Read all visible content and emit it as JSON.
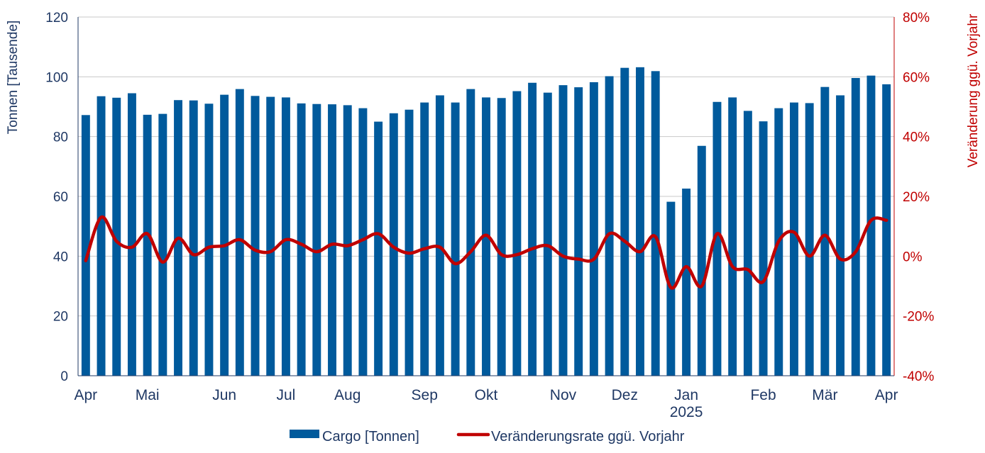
{
  "chart_data": {
    "type": "bar+line",
    "title": "",
    "ylabel_left": "Tonnen [Tausende]",
    "ylabel_right": "Veränderung ggü. Vorjahr",
    "ylim_left": [
      0,
      120
    ],
    "ylim_right": [
      -40,
      80
    ],
    "yticks_left": [
      "0",
      "20",
      "40",
      "60",
      "80",
      "100",
      "120"
    ],
    "yticks_right": [
      "-40%",
      "-20%",
      "0%",
      "20%",
      "40%",
      "60%",
      "80%"
    ],
    "x_month_labels": [
      "Apr",
      "Mai",
      "Jun",
      "Jul",
      "Aug",
      "Sep",
      "Okt",
      "Nov",
      "Dez",
      "Jan",
      "Feb",
      "Mär",
      "Apr"
    ],
    "x_month_week_index": [
      0,
      4,
      9,
      13,
      17,
      22,
      26,
      31,
      35,
      39,
      44,
      48,
      52
    ],
    "x_year_label": "2025",
    "grid": "horizontal",
    "legend_position": "bottom",
    "series": [
      {
        "name": "Cargo [Tonnen]",
        "type": "bar",
        "color": "#005A9C",
        "values": [
          87.2,
          93.5,
          93.0,
          94.5,
          87.3,
          87.6,
          92.2,
          92.1,
          91.0,
          94.0,
          95.9,
          93.6,
          93.3,
          93.1,
          91.1,
          90.9,
          90.8,
          90.5,
          89.5,
          85.0,
          87.8,
          89.0,
          91.4,
          93.8,
          91.4,
          95.9,
          93.1,
          92.9,
          95.2,
          98.0,
          94.7,
          97.2,
          96.5,
          98.2,
          100.2,
          103.0,
          103.2,
          101.9,
          58.2,
          62.6,
          76.9,
          91.6,
          93.1,
          88.6,
          85.1,
          89.5,
          91.4,
          91.2,
          96.6,
          93.8,
          99.6,
          100.4,
          97.5
        ]
      },
      {
        "name": "Veränderungsrate ggü. Vorjahr",
        "type": "line",
        "color": "#C00000",
        "values": [
          -1.5,
          13.0,
          5.0,
          3.0,
          7.5,
          -2.0,
          6.0,
          0.5,
          3.0,
          3.5,
          5.5,
          2.0,
          1.5,
          5.5,
          4.0,
          1.5,
          4.0,
          3.5,
          5.5,
          7.5,
          3.0,
          1.0,
          2.5,
          3.0,
          -2.5,
          1.5,
          7.0,
          0.5,
          0.5,
          2.5,
          3.5,
          0.0,
          -1.0,
          -1.0,
          7.5,
          5.0,
          1.5,
          6.5,
          -10.5,
          -3.5,
          -10.0,
          7.5,
          -3.5,
          -4.5,
          -8.5,
          5.0,
          8.0,
          0.0,
          7.0,
          -1.0,
          1.5,
          12.0,
          12.0
        ]
      }
    ]
  }
}
